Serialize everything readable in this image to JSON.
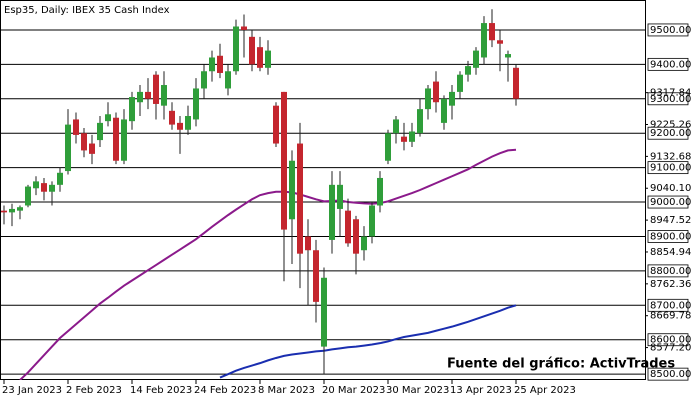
{
  "chart_data": {
    "type": "candlestick",
    "title": "Esp35, Daily:  IBEX 35 Cash Index",
    "annotation": "Fuente del gráfico: ActivTrades",
    "x": [
      "23 Jan 2023",
      "24 Jan 2023",
      "25 Jan 2023",
      "26 Jan 2023",
      "27 Jan 2023",
      "30 Jan 2023",
      "31 Jan 2023",
      "1 Feb 2023",
      "2 Feb 2023",
      "3 Feb 2023",
      "6 Feb 2023",
      "7 Feb 2023",
      "8 Feb 2023",
      "9 Feb 2023",
      "10 Feb 2023",
      "13 Feb 2023",
      "14 Feb 2023",
      "15 Feb 2023",
      "16 Feb 2023",
      "17 Feb 2023",
      "20 Feb 2023",
      "21 Feb 2023",
      "22 Feb 2023",
      "23 Feb 2023",
      "24 Feb 2023",
      "27 Feb 2023",
      "28 Feb 2023",
      "1 Mar 2023",
      "2 Mar 2023",
      "3 Mar 2023",
      "6 Mar 2023",
      "7 Mar 2023",
      "8 Mar 2023",
      "9 Mar 2023",
      "10 Mar 2023",
      "13 Mar 2023",
      "14 Mar 2023",
      "15 Mar 2023",
      "16 Mar 2023",
      "17 Mar 2023",
      "20 Mar 2023",
      "21 Mar 2023",
      "22 Mar 2023",
      "23 Mar 2023",
      "24 Mar 2023",
      "27 Mar 2023",
      "28 Mar 2023",
      "29 Mar 2023",
      "30 Mar 2023",
      "31 Mar 2023",
      "3 Apr 2023",
      "4 Apr 2023",
      "5 Apr 2023",
      "6 Apr 2023",
      "11 Apr 2023",
      "12 Apr 2023",
      "13 Apr 2023",
      "14 Apr 2023",
      "17 Apr 2023",
      "18 Apr 2023",
      "19 Apr 2023",
      "20 Apr 2023",
      "21 Apr 2023",
      "24 Apr 2023",
      "25 Apr 2023"
    ],
    "open": [
      8975,
      8970,
      8975,
      8990,
      9040,
      9055,
      9030,
      9050,
      9090,
      9240,
      9200,
      9170,
      9180,
      9235,
      9245,
      9120,
      9235,
      9290,
      9320,
      9370,
      9280,
      9265,
      9230,
      9210,
      9240,
      9330,
      9380,
      9425,
      9330,
      9380,
      9510,
      9480,
      9450,
      9390,
      9280,
      9320,
      8950,
      9170,
      8900,
      8860,
      8580,
      8890,
      8980,
      8975,
      8950,
      8860,
      8900,
      8990,
      9120,
      9200,
      9190,
      9175,
      9200,
      9270,
      9350,
      9230,
      9280,
      9320,
      9370,
      9390,
      9420,
      9520,
      9470,
      9420,
      9390
    ],
    "high": [
      8990,
      8995,
      8990,
      9050,
      9075,
      9070,
      9060,
      9100,
      9270,
      9260,
      9215,
      9195,
      9250,
      9290,
      9260,
      9270,
      9320,
      9340,
      9360,
      9380,
      9380,
      9290,
      9250,
      9280,
      9360,
      9400,
      9440,
      9460,
      9400,
      9530,
      9545,
      9500,
      9480,
      9470,
      9290,
      9320,
      9150,
      9230,
      8950,
      8890,
      8810,
      9090,
      9090,
      9010,
      8960,
      8930,
      9000,
      9090,
      9210,
      9250,
      9230,
      9230,
      9300,
      9340,
      9380,
      9310,
      9340,
      9380,
      9410,
      9450,
      9540,
      9560,
      9500,
      9440,
      9400
    ],
    "low": [
      8935,
      8930,
      8950,
      8985,
      9020,
      9005,
      8990,
      9030,
      9080,
      9170,
      9130,
      9110,
      9160,
      9220,
      9110,
      9110,
      9210,
      9250,
      9270,
      9240,
      9240,
      9210,
      9140,
      9195,
      9220,
      9300,
      9350,
      9360,
      9310,
      9370,
      9420,
      9380,
      9380,
      9370,
      9160,
      8770,
      8820,
      8750,
      8700,
      8650,
      8500,
      8850,
      8900,
      8870,
      8790,
      8830,
      8880,
      8970,
      9110,
      9170,
      9150,
      9160,
      9190,
      9240,
      9260,
      9210,
      9240,
      9300,
      9350,
      9370,
      9400,
      9450,
      9380,
      9350,
      9280
    ],
    "close": [
      8970,
      8980,
      8985,
      9045,
      9060,
      9030,
      9050,
      9085,
      9225,
      9195,
      9150,
      9140,
      9230,
      9255,
      9120,
      9240,
      9305,
      9320,
      9300,
      9285,
      9340,
      9225,
      9210,
      9250,
      9330,
      9380,
      9420,
      9375,
      9380,
      9510,
      9500,
      9400,
      9390,
      9440,
      9170,
      8920,
      9120,
      8850,
      8860,
      8710,
      8780,
      9050,
      9050,
      8880,
      8850,
      8900,
      8990,
      9070,
      9200,
      9240,
      9175,
      9205,
      9270,
      9330,
      9290,
      9300,
      9320,
      9370,
      9395,
      9440,
      9520,
      9470,
      9460,
      9430,
      9300
    ],
    "up_color": "#2f9e3a",
    "down_color": "#c4262e",
    "series": [
      {
        "color": "#8b1a8b",
        "values": [
          null,
          null,
          8483,
          8505,
          8530,
          8555,
          8580,
          8605,
          8625,
          8645,
          8665,
          8685,
          8705,
          8722,
          8740,
          8757,
          8772,
          8787,
          8802,
          8817,
          8832,
          8847,
          8862,
          8877,
          8892,
          8910,
          8928,
          8945,
          8962,
          8978,
          8993,
          9008,
          9020,
          9026,
          9030,
          9030,
          9028,
          9022,
          9015,
          9008,
          9002,
          9003,
          9005,
          9000,
          8998,
          8996,
          8995,
          8997,
          9002,
          9010,
          9018,
          9026,
          9035,
          9045,
          9055,
          9065,
          9075,
          9085,
          9095,
          9108,
          9120,
          9132,
          9142,
          9150,
          9152
        ]
      },
      {
        "color": "#1a2eb0",
        "values": [
          null,
          null,
          null,
          null,
          null,
          null,
          null,
          null,
          null,
          null,
          null,
          null,
          null,
          null,
          null,
          null,
          null,
          null,
          null,
          null,
          null,
          null,
          null,
          null,
          null,
          null,
          null,
          8490,
          8500,
          8510,
          8518,
          8525,
          8532,
          8540,
          8547,
          8553,
          8557,
          8560,
          8563,
          8566,
          8568,
          8572,
          8575,
          8578,
          8580,
          8583,
          8586,
          8590,
          8595,
          8602,
          8608,
          8612,
          8616,
          8620,
          8626,
          8632,
          8638,
          8645,
          8652,
          8660,
          8668,
          8676,
          8684,
          8693,
          8700
        ]
      }
    ],
    "xticks": [
      "23 Jan 2023",
      "2 Feb 2023",
      "14 Feb 2023",
      "24 Feb 2023",
      "8 Mar 2023",
      "20 Mar 2023",
      "30 Mar 2023",
      "13 Apr 2023",
      "25 Apr 2023"
    ],
    "ylim": [
      8483,
      9587
    ],
    "yticks": [
      {
        "value": 9317.84,
        "label": "9317.84"
      },
      {
        "value": 9225.26,
        "label": "9225.26"
      },
      {
        "value": 9132.68,
        "label": "9132.68"
      },
      {
        "value": 9040.1,
        "label": "9040.10"
      },
      {
        "value": 8947.52,
        "label": "8947.52"
      },
      {
        "value": 8854.94,
        "label": "8854.94"
      },
      {
        "value": 8762.36,
        "label": "8762.36"
      },
      {
        "value": 8669.78,
        "label": "8669.78"
      },
      {
        "value": 8577.2,
        "label": "8577.20"
      }
    ],
    "hlines": [
      {
        "value": 9500,
        "label": "9500.00"
      },
      {
        "value": 9400,
        "label": "9400.00"
      },
      {
        "value": 9300,
        "label": "9300.00"
      },
      {
        "value": 9200,
        "label": "9200.00"
      },
      {
        "value": 9100,
        "label": "9100.00"
      },
      {
        "value": 9000,
        "label": "9000.00"
      },
      {
        "value": 8900,
        "label": "8900.00"
      },
      {
        "value": 8800,
        "label": "8800.00"
      },
      {
        "value": 8700,
        "label": "8700.00"
      },
      {
        "value": 8600,
        "label": "8600.00"
      },
      {
        "value": 8500,
        "label": "8500.00"
      }
    ]
  }
}
